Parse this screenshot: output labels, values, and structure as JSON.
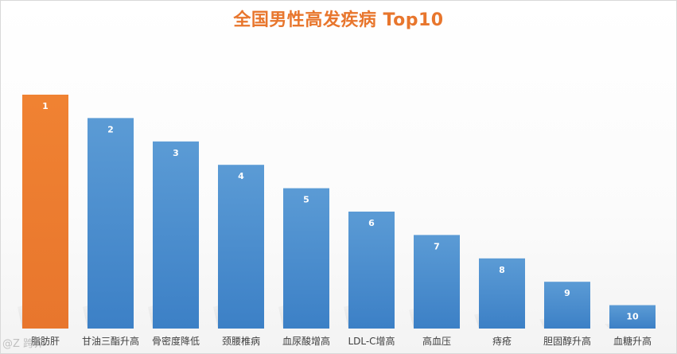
{
  "chart_data": {
    "type": "bar",
    "title": "全国男性高发疾病 Top10",
    "categories": [
      "脂肪肝",
      "甘油三酯升高",
      "骨密度降低",
      "颈腰椎病",
      "血尿酸增高",
      "LDL-C增高",
      "高血压",
      "痔疮",
      "胆固醇升高",
      "血糖升高"
    ],
    "values": [
      10,
      9,
      8,
      7,
      6,
      5,
      4,
      3,
      2,
      1
    ],
    "data_labels": [
      "1",
      "2",
      "3",
      "4",
      "5",
      "6",
      "7",
      "8",
      "9",
      "10"
    ],
    "xlabel": "",
    "ylabel": "",
    "ylim": [
      0,
      10
    ],
    "grid": false,
    "legend": "none",
    "colors": {
      "highlight": "#ed7d31",
      "bar_top": "#5b9bd5",
      "bar_bottom": "#3a7fc4",
      "label": "#ffffff",
      "title": "#e8762d",
      "axis_text": "#404040"
    }
  },
  "watermark": "@Z 跨界"
}
